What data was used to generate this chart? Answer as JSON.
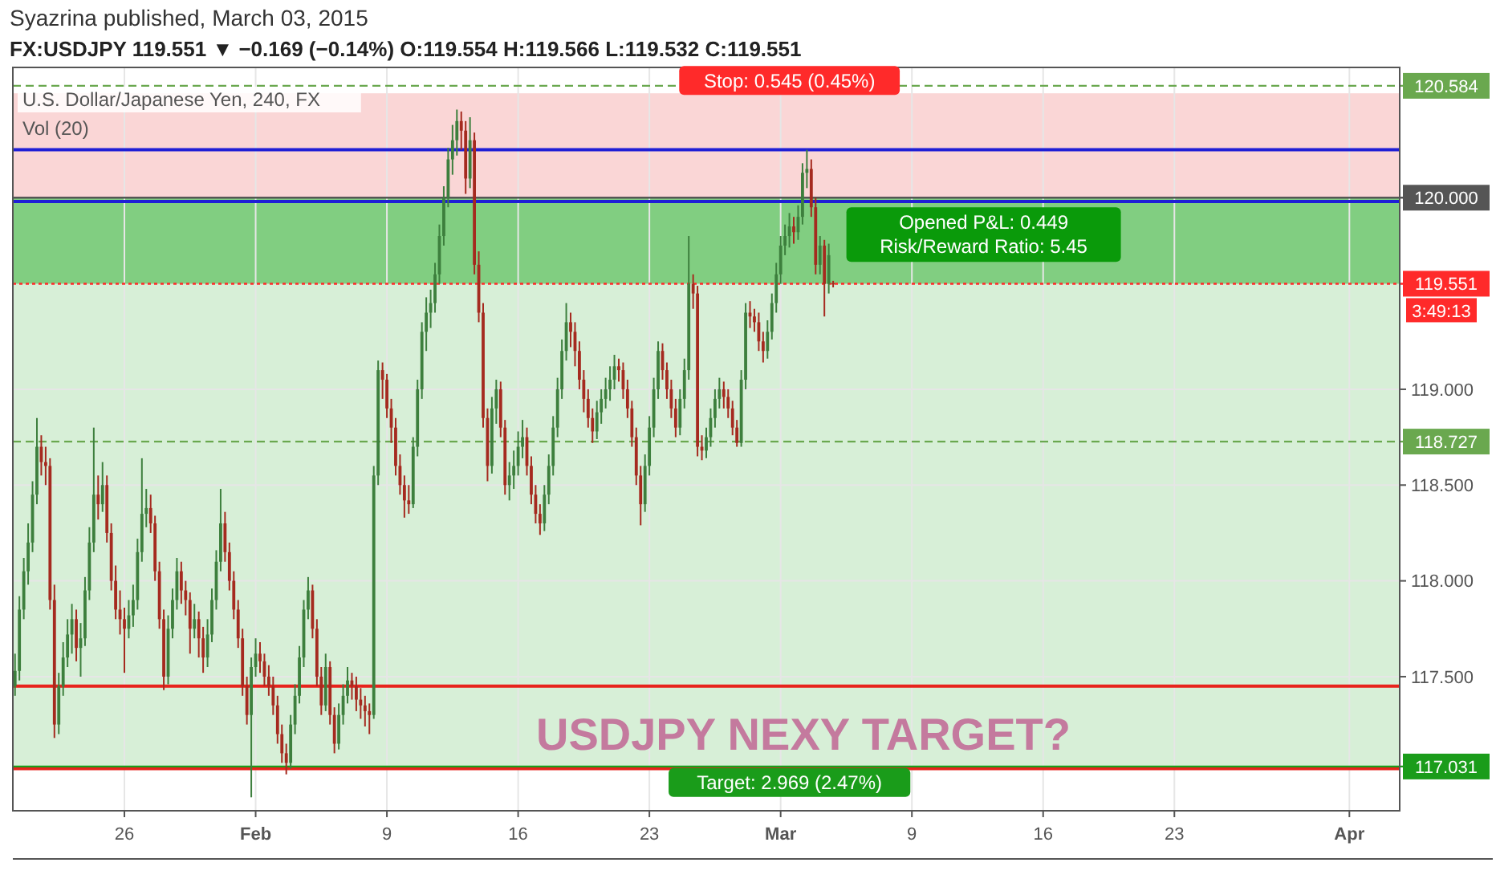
{
  "chart_data": {
    "type": "candlestick",
    "title": "FX:USDJPY 119.551 ▼ −0.169 (−0.14%) O:119.554 H:119.566 L:119.532 C:119.551",
    "subtitle": "U.S. Dollar/Japanese Yen, 240, FX",
    "annotations": [
      "Syazrina published, March 03, 2015",
      "Vol (20)",
      "3:49:13",
      "USDJPY NEXY TARGET?",
      "Opened P&L: 0.449",
      "Risk/Reward Ratio: 5.45"
    ],
    "categories": [
      null,
      null,
      null,
      null,
      null,
      null,
      null,
      null,
      null,
      null,
      null,
      null,
      null,
      null,
      null,
      null,
      null,
      null,
      null,
      null,
      null,
      null,
      null,
      null,
      null,
      "26",
      null,
      null,
      null,
      null,
      null,
      null,
      null,
      null,
      null,
      null,
      null,
      null,
      null,
      null,
      null,
      null,
      null,
      null,
      null,
      null,
      null,
      null,
      null,
      null,
      null,
      null,
      null,
      null,
      null,
      "Feb",
      null,
      null,
      null,
      null,
      null,
      null,
      null,
      null,
      null,
      null,
      null,
      null,
      null,
      null,
      null,
      null,
      null,
      null,
      null,
      null,
      null,
      null,
      null,
      null,
      null,
      null,
      null,
      null,
      null,
      "9",
      null,
      null,
      null,
      null,
      null,
      null,
      null,
      null,
      null,
      null,
      null,
      null,
      null,
      null,
      null,
      null,
      null,
      null,
      null,
      null,
      null,
      null,
      null,
      null,
      null,
      null,
      null,
      null,
      null,
      "16",
      null,
      null,
      null,
      null,
      null,
      null,
      null,
      null,
      null,
      null,
      null,
      null,
      null,
      null,
      null,
      null,
      null,
      null,
      null,
      null,
      null,
      null,
      null,
      null,
      null,
      null,
      null,
      null,
      null,
      "23",
      null,
      null,
      null,
      null,
      null,
      null,
      null,
      null,
      null,
      null,
      null,
      null,
      null,
      null,
      null,
      null,
      null,
      null,
      null,
      null,
      null,
      null,
      null,
      null,
      null,
      null,
      null,
      null,
      null,
      "Mar",
      null,
      null,
      null,
      null,
      null,
      null,
      null,
      null,
      null,
      null,
      null,
      null,
      null,
      null,
      null,
      null,
      null,
      null,
      null,
      null,
      null,
      null,
      null,
      null,
      null,
      null,
      null,
      null,
      null,
      "9",
      null,
      null,
      null,
      null,
      null,
      null,
      null,
      null,
      null,
      null,
      null,
      null,
      null,
      null,
      null,
      null,
      null,
      null,
      null,
      null,
      null,
      null,
      null,
      null,
      null,
      null,
      null,
      null,
      null,
      "16",
      null,
      null,
      null,
      null,
      null,
      null,
      null,
      null,
      null,
      null,
      null,
      null,
      null,
      null,
      null,
      null,
      null,
      null,
      null,
      null,
      null,
      null,
      null,
      null,
      null,
      null,
      null,
      null,
      null,
      "23",
      null,
      null,
      null,
      null,
      null,
      null,
      null,
      null,
      null,
      null,
      null,
      null,
      null,
      null,
      null,
      null,
      null,
      null,
      null,
      null,
      null,
      null,
      null,
      null,
      null,
      null,
      null,
      null,
      null,
      null,
      null,
      null,
      null,
      null,
      null,
      null,
      null,
      null,
      null,
      "Apr",
      null,
      null,
      null,
      null,
      null,
      null,
      null,
      null,
      null,
      null,
      null
    ],
    "ylim": [
      116.8,
      120.68
    ],
    "yticks": [
      {
        "value": 117.5,
        "label": "117.500"
      },
      {
        "value": 118,
        "label": "118.000"
      },
      {
        "value": 118.5,
        "label": "118.500"
      },
      {
        "value": 119,
        "label": "119.000"
      }
    ],
    "grid": true,
    "ohlc": [
      [
        117.45,
        117.62,
        117.4,
        117.53
      ],
      [
        117.53,
        117.92,
        117.48,
        117.85
      ],
      [
        117.85,
        118.12,
        117.8,
        118.05
      ],
      [
        118.05,
        118.3,
        117.98,
        118.2
      ],
      [
        118.2,
        118.52,
        118.15,
        118.45
      ],
      [
        118.45,
        118.85,
        118.4,
        118.7
      ],
      [
        118.7,
        118.76,
        118.55,
        118.62
      ],
      [
        118.62,
        118.7,
        118.5,
        118.6
      ],
      [
        118.6,
        118.64,
        117.85,
        117.9
      ],
      [
        117.9,
        117.98,
        117.18,
        117.25
      ],
      [
        117.25,
        117.52,
        117.2,
        117.45
      ],
      [
        117.45,
        117.68,
        117.4,
        117.6
      ],
      [
        117.6,
        117.8,
        117.55,
        117.72
      ],
      [
        117.72,
        117.88,
        117.62,
        117.8
      ],
      [
        117.8,
        117.85,
        117.58,
        117.65
      ],
      [
        117.65,
        117.78,
        117.5,
        117.7
      ],
      [
        117.7,
        118.02,
        117.66,
        117.95
      ],
      [
        117.95,
        118.28,
        117.9,
        118.2
      ],
      [
        118.2,
        118.8,
        118.15,
        118.45
      ],
      [
        118.45,
        118.55,
        118.32,
        118.4
      ],
      [
        118.4,
        118.62,
        118.36,
        118.5
      ],
      [
        118.5,
        118.55,
        118.2,
        118.25
      ],
      [
        118.25,
        118.3,
        117.95,
        118.0
      ],
      [
        118.0,
        118.08,
        117.8,
        117.85
      ],
      [
        117.85,
        117.95,
        117.72,
        117.8
      ],
      [
        117.8,
        117.86,
        117.52,
        117.75
      ],
      [
        117.75,
        117.9,
        117.7,
        117.82
      ],
      [
        117.82,
        117.98,
        117.76,
        117.9
      ],
      [
        117.9,
        118.22,
        117.85,
        118.15
      ],
      [
        118.15,
        118.64,
        118.1,
        118.35
      ],
      [
        118.35,
        118.48,
        118.28,
        118.38
      ],
      [
        118.38,
        118.45,
        118.25,
        118.3
      ],
      [
        118.3,
        118.34,
        118.0,
        118.05
      ],
      [
        118.05,
        118.1,
        117.75,
        117.8
      ],
      [
        117.8,
        117.85,
        117.43,
        117.5
      ],
      [
        117.5,
        117.82,
        117.46,
        117.75
      ],
      [
        117.75,
        117.96,
        117.7,
        117.9
      ],
      [
        117.9,
        118.12,
        117.85,
        118.05
      ],
      [
        118.05,
        118.1,
        117.88,
        117.95
      ],
      [
        117.95,
        118.0,
        117.82,
        117.9
      ],
      [
        117.9,
        117.94,
        117.62,
        117.75
      ],
      [
        117.75,
        117.88,
        117.7,
        117.8
      ],
      [
        117.8,
        117.84,
        117.6,
        117.7
      ],
      [
        117.7,
        117.76,
        117.52,
        117.6
      ],
      [
        117.6,
        117.8,
        117.55,
        117.72
      ],
      [
        117.72,
        117.96,
        117.68,
        117.9
      ],
      [
        117.9,
        118.16,
        117.85,
        118.1
      ],
      [
        118.1,
        118.48,
        118.05,
        118.3
      ],
      [
        118.3,
        118.36,
        118.1,
        118.15
      ],
      [
        118.15,
        118.2,
        117.95,
        118.0
      ],
      [
        118.0,
        118.05,
        117.8,
        117.85
      ],
      [
        117.85,
        117.9,
        117.65,
        117.7
      ],
      [
        117.7,
        117.75,
        117.4,
        117.45
      ],
      [
        117.45,
        117.5,
        117.25,
        117.3
      ],
      [
        117.3,
        117.6,
        116.87,
        117.55
      ],
      [
        117.55,
        117.7,
        117.5,
        117.62
      ],
      [
        117.62,
        117.68,
        117.52,
        117.58
      ],
      [
        117.58,
        117.62,
        117.45,
        117.5
      ],
      [
        117.5,
        117.56,
        117.4,
        117.45
      ],
      [
        117.45,
        117.5,
        117.3,
        117.35
      ],
      [
        117.35,
        117.4,
        117.15,
        117.2
      ],
      [
        117.2,
        117.25,
        117.05,
        117.1
      ],
      [
        117.1,
        117.15,
        116.99,
        117.05
      ],
      [
        117.05,
        117.3,
        117.02,
        117.25
      ],
      [
        117.25,
        117.46,
        117.2,
        117.4
      ],
      [
        117.4,
        117.66,
        117.36,
        117.6
      ],
      [
        117.6,
        117.9,
        117.55,
        117.85
      ],
      [
        117.85,
        118.02,
        117.8,
        117.95
      ],
      [
        117.95,
        117.98,
        117.7,
        117.75
      ],
      [
        117.75,
        117.8,
        117.45,
        117.5
      ],
      [
        117.5,
        117.55,
        117.3,
        117.35
      ],
      [
        117.35,
        117.62,
        117.32,
        117.55
      ],
      [
        117.55,
        117.58,
        117.25,
        117.3
      ],
      [
        117.3,
        117.34,
        117.1,
        117.15
      ],
      [
        117.15,
        117.36,
        117.12,
        117.3
      ],
      [
        117.3,
        117.46,
        117.25,
        117.4
      ],
      [
        117.4,
        117.55,
        117.36,
        117.48
      ],
      [
        117.48,
        117.52,
        117.38,
        117.45
      ],
      [
        117.45,
        117.5,
        117.32,
        117.38
      ],
      [
        117.38,
        117.44,
        117.28,
        117.35
      ],
      [
        117.35,
        117.4,
        117.24,
        117.32
      ],
      [
        117.32,
        117.36,
        117.2,
        117.3
      ],
      [
        117.3,
        118.6,
        117.28,
        118.55
      ],
      [
        118.55,
        119.15,
        118.5,
        119.1
      ],
      [
        119.1,
        119.14,
        118.95,
        119.05
      ],
      [
        119.05,
        119.08,
        118.85,
        118.9
      ],
      [
        118.9,
        118.95,
        118.72,
        118.8
      ],
      [
        118.8,
        118.85,
        118.55,
        118.6
      ],
      [
        118.6,
        118.66,
        118.45,
        118.5
      ],
      [
        118.5,
        118.55,
        118.33,
        118.42
      ],
      [
        118.42,
        118.5,
        118.35,
        118.4
      ],
      [
        118.4,
        118.75,
        118.38,
        118.7
      ],
      [
        118.7,
        119.05,
        118.65,
        119.0
      ],
      [
        119.0,
        119.35,
        118.95,
        119.3
      ],
      [
        119.3,
        119.48,
        119.2,
        119.4
      ],
      [
        119.4,
        119.52,
        119.32,
        119.45
      ],
      [
        119.45,
        119.66,
        119.4,
        119.6
      ],
      [
        119.6,
        119.86,
        119.55,
        119.8
      ],
      [
        119.8,
        120.06,
        119.75,
        120.0
      ],
      [
        120.0,
        120.26,
        119.95,
        120.2
      ],
      [
        120.2,
        120.38,
        120.12,
        120.3
      ],
      [
        120.3,
        120.46,
        120.22,
        120.4
      ],
      [
        120.4,
        120.45,
        120.25,
        120.35
      ],
      [
        120.35,
        120.4,
        120.02,
        120.1
      ],
      [
        120.1,
        120.42,
        120.05,
        120.3
      ],
      [
        120.3,
        120.34,
        119.6,
        119.65
      ],
      [
        119.65,
        119.72,
        119.35,
        119.4
      ],
      [
        119.4,
        119.45,
        118.8,
        118.85
      ],
      [
        118.85,
        118.9,
        118.52,
        118.6
      ],
      [
        118.6,
        118.96,
        118.56,
        118.9
      ],
      [
        118.9,
        119.05,
        118.82,
        119.0
      ],
      [
        119.0,
        119.04,
        118.75,
        118.8
      ],
      [
        118.8,
        118.84,
        118.45,
        118.5
      ],
      [
        118.5,
        118.62,
        118.42,
        118.55
      ],
      [
        118.55,
        118.68,
        118.48,
        118.6
      ],
      [
        118.6,
        118.78,
        118.55,
        118.7
      ],
      [
        118.7,
        118.84,
        118.64,
        118.75
      ],
      [
        118.75,
        118.8,
        118.55,
        118.6
      ],
      [
        118.6,
        118.65,
        118.4,
        118.45
      ],
      [
        118.45,
        118.5,
        118.3,
        118.35
      ],
      [
        118.35,
        118.4,
        118.24,
        118.3
      ],
      [
        118.3,
        118.5,
        118.26,
        118.45
      ],
      [
        118.45,
        118.66,
        118.4,
        118.6
      ],
      [
        118.6,
        118.86,
        118.55,
        118.8
      ],
      [
        118.8,
        119.06,
        118.75,
        119.0
      ],
      [
        119.0,
        119.26,
        118.95,
        119.2
      ],
      [
        119.2,
        119.45,
        119.15,
        119.35
      ],
      [
        119.35,
        119.4,
        119.22,
        119.3
      ],
      [
        119.3,
        119.35,
        119.12,
        119.2
      ],
      [
        119.2,
        119.25,
        119.0,
        119.05
      ],
      [
        119.05,
        119.1,
        118.88,
        118.95
      ],
      [
        118.95,
        119.0,
        118.8,
        118.85
      ],
      [
        118.85,
        118.9,
        118.72,
        118.78
      ],
      [
        118.78,
        118.94,
        118.74,
        118.88
      ],
      [
        118.88,
        119.0,
        118.82,
        118.95
      ],
      [
        118.95,
        119.06,
        118.9,
        119.0
      ],
      [
        119.0,
        119.12,
        118.94,
        119.05
      ],
      [
        119.05,
        119.18,
        119.0,
        119.12
      ],
      [
        119.12,
        119.16,
        119.04,
        119.1
      ],
      [
        119.1,
        119.14,
        118.95,
        119.0
      ],
      [
        119.0,
        119.05,
        118.85,
        118.9
      ],
      [
        118.9,
        118.94,
        118.7,
        118.75
      ],
      [
        118.75,
        118.8,
        118.5,
        118.55
      ],
      [
        118.55,
        118.6,
        118.29,
        118.4
      ],
      [
        118.4,
        118.66,
        118.36,
        118.6
      ],
      [
        118.6,
        118.86,
        118.55,
        118.8
      ],
      [
        118.8,
        119.06,
        118.75,
        119.0
      ],
      [
        119.0,
        119.25,
        118.95,
        119.2
      ],
      [
        119.2,
        119.24,
        119.05,
        119.1
      ],
      [
        119.1,
        119.14,
        118.95,
        119.0
      ],
      [
        119.0,
        119.05,
        118.85,
        118.9
      ],
      [
        118.9,
        118.95,
        118.75,
        118.8
      ],
      [
        118.8,
        119.0,
        118.76,
        118.95
      ],
      [
        118.95,
        119.16,
        118.9,
        119.1
      ],
      [
        119.1,
        119.8,
        119.05,
        119.55
      ],
      [
        119.55,
        119.6,
        119.42,
        119.5
      ],
      [
        119.5,
        119.54,
        118.65,
        118.7
      ],
      [
        118.7,
        118.76,
        118.63,
        118.68
      ],
      [
        118.68,
        118.8,
        118.64,
        118.75
      ],
      [
        118.75,
        118.9,
        118.7,
        118.85
      ],
      [
        118.85,
        119.0,
        118.8,
        118.95
      ],
      [
        118.95,
        119.06,
        118.9,
        119.0
      ],
      [
        119.0,
        119.04,
        118.9,
        118.96
      ],
      [
        118.96,
        119.0,
        118.85,
        118.9
      ],
      [
        118.9,
        118.94,
        118.76,
        118.8
      ],
      [
        118.8,
        118.84,
        118.7,
        118.72
      ],
      [
        118.72,
        119.1,
        118.7,
        119.05
      ],
      [
        119.05,
        119.45,
        119.0,
        119.4
      ],
      [
        119.4,
        119.46,
        119.32,
        119.38
      ],
      [
        119.38,
        119.42,
        119.3,
        119.35
      ],
      [
        119.35,
        119.4,
        119.2,
        119.25
      ],
      [
        119.25,
        119.3,
        119.14,
        119.2
      ],
      [
        119.2,
        119.36,
        119.16,
        119.3
      ],
      [
        119.3,
        119.5,
        119.26,
        119.45
      ],
      [
        119.45,
        119.66,
        119.4,
        119.6
      ],
      [
        119.6,
        119.8,
        119.55,
        119.75
      ],
      [
        119.75,
        119.86,
        119.7,
        119.8
      ],
      [
        119.8,
        119.92,
        119.74,
        119.85
      ],
      [
        119.85,
        119.9,
        119.76,
        119.82
      ],
      [
        119.82,
        119.96,
        119.78,
        119.9
      ],
      [
        119.9,
        120.18,
        119.86,
        120.13
      ],
      [
        120.13,
        120.25,
        120.05,
        120.15
      ],
      [
        120.15,
        120.2,
        119.9,
        119.95
      ],
      [
        119.95,
        120.0,
        119.6,
        119.65
      ],
      [
        119.65,
        119.8,
        119.6,
        119.75
      ],
      [
        119.75,
        119.78,
        119.38,
        119.55
      ],
      [
        119.55,
        119.76,
        119.5,
        119.7
      ],
      [
        119.554,
        119.566,
        119.532,
        119.551
      ],
      null,
      null,
      null,
      null,
      null,
      null,
      null,
      null,
      null,
      null,
      null,
      null,
      null,
      null,
      null,
      null,
      null,
      null,
      null,
      null,
      null,
      null,
      null,
      null,
      null,
      null,
      null,
      null,
      null,
      null,
      null,
      null,
      null,
      null,
      null,
      null,
      null,
      null,
      null,
      null,
      null,
      null,
      null,
      null,
      null,
      null,
      null,
      null,
      null,
      null,
      null,
      null,
      null,
      null,
      null,
      null,
      null,
      null,
      null,
      null,
      null,
      null,
      null,
      null,
      null,
      null,
      null,
      null,
      null,
      null,
      null,
      null,
      null,
      null,
      null,
      null,
      null,
      null,
      null,
      null,
      null,
      null,
      null,
      null,
      null,
      null,
      null,
      null,
      null,
      null,
      null,
      null,
      null,
      null,
      null,
      null,
      null,
      null,
      null,
      null,
      null,
      null,
      null,
      null,
      null,
      null,
      null,
      null,
      null,
      null,
      null,
      null,
      null,
      null,
      null,
      null,
      null,
      null,
      null,
      null,
      null,
      null,
      null,
      null,
      null,
      null,
      null,
      null,
      null
    ],
    "ref_lines": [
      {
        "axis": "y",
        "value": 120.25,
        "color": "#1f1fd6",
        "line_style": "solid"
      },
      {
        "axis": "y",
        "value": 119.98,
        "color": "#1f1fd6",
        "line_style": "solid"
      },
      {
        "axis": "y",
        "value": 117.45,
        "color": "#e8231c",
        "line_style": "solid"
      },
      {
        "axis": "y",
        "value": 117.02,
        "color": "#e8231c",
        "line_style": "solid"
      },
      {
        "axis": "y",
        "value": 120.584,
        "label": "120.584",
        "color": "#6aa84f",
        "line_style": "dashed"
      },
      {
        "axis": "y",
        "value": 118.727,
        "label": "118.727",
        "color": "#6aa84f",
        "line_style": "dashed"
      },
      {
        "axis": "y",
        "value": 119.551,
        "label": "119.551",
        "color": "#ff2a2a",
        "line_style": "dotted"
      },
      {
        "axis": "y",
        "value": 120.0,
        "label": "120.000",
        "color": "#555555",
        "line_style": "solid"
      },
      {
        "axis": "y",
        "value": 117.031,
        "label": "117.031",
        "color": "#1a9c1a",
        "line_style": "solid"
      }
    ],
    "bands": [
      {
        "axis": "y",
        "from": 120.0,
        "to": 120.545,
        "label": "Stop: 0.545 (0.45%)",
        "color": "#f9cccc"
      },
      {
        "axis": "y",
        "from": 117.031,
        "to": 120.0,
        "label": "Target: 2.969 (2.47%)",
        "color": "#cdebcd"
      },
      {
        "axis": "y",
        "from": 119.551,
        "to": 120.0,
        "color": "#6cc56c"
      }
    ]
  }
}
